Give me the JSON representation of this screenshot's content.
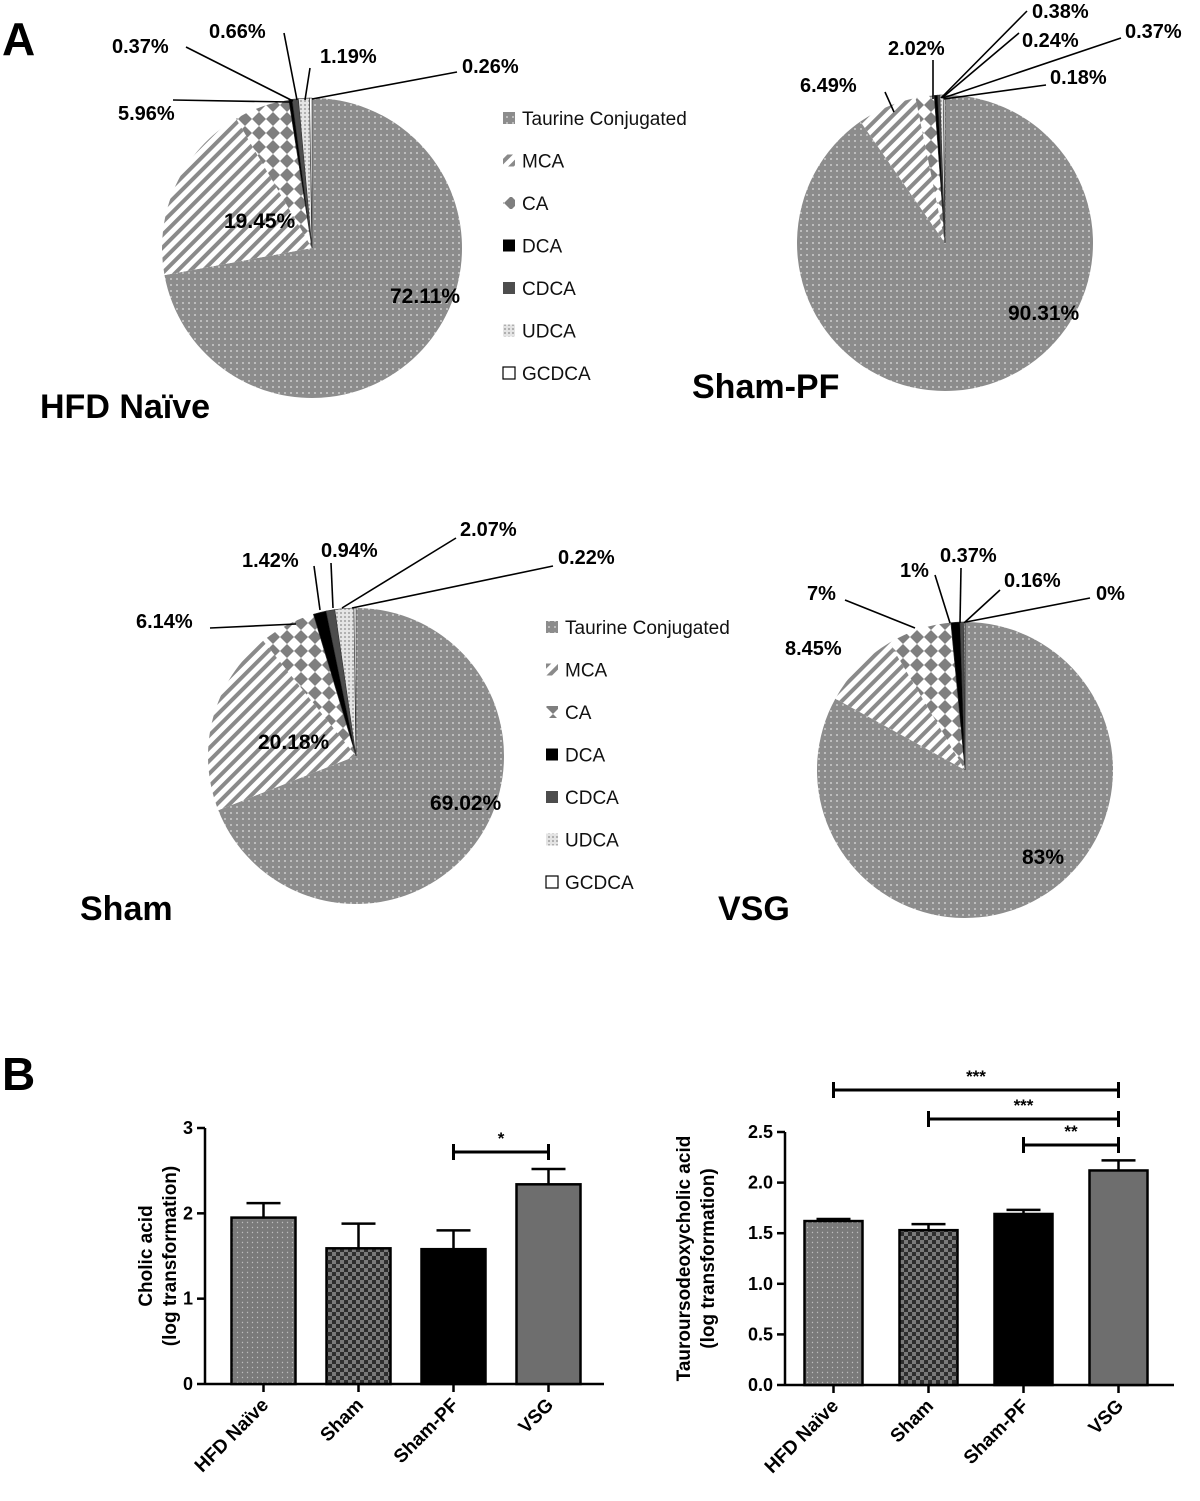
{
  "figure": {
    "panel_a_letter": "A",
    "panel_b_letter": "B"
  },
  "legend_items": [
    "Taurine Conjugated",
    "MCA",
    "CA",
    "DCA",
    "CDCA",
    "UDCA",
    "GCDCA"
  ],
  "colors": {
    "taurine": "#8c8c8c",
    "mca": "#ffffff",
    "ca": "#7f7f7f",
    "dca": "#000000",
    "cdca": "#4d4d4d",
    "udca": "#c8c8c8",
    "gcdca": "#ffffff",
    "bar_hfd": "#7a7a7a",
    "bar_sham": "#3a3a3a",
    "bar_shampf": "#000000",
    "bar_vsg": "#6e6e6e"
  },
  "chart_data": [
    {
      "type": "pie",
      "title": "HFD Naïve",
      "categories": [
        "Taurine Conjugated",
        "MCA",
        "CA",
        "DCA",
        "CDCA",
        "UDCA",
        "GCDCA"
      ],
      "values": [
        72.11,
        19.45,
        5.96,
        0.37,
        0.66,
        1.19,
        0.26
      ],
      "labels": [
        "72.11%",
        "19.45%",
        "5.96%",
        "0.37%",
        "0.66%",
        "1.19%",
        "0.26%"
      ]
    },
    {
      "type": "pie",
      "title": "Sham-PF",
      "categories": [
        "Taurine Conjugated",
        "MCA",
        "CA",
        "DCA",
        "CDCA",
        "UDCA",
        "GCDCA"
      ],
      "values": [
        90.31,
        6.49,
        2.02,
        0.38,
        0.24,
        0.37,
        0.18
      ],
      "labels": [
        "90.31%",
        "6.49%",
        "2.02%",
        "0.38%",
        "0.24%",
        "0.37%",
        "0.18%"
      ]
    },
    {
      "type": "pie",
      "title": "Sham",
      "categories": [
        "Taurine Conjugated",
        "MCA",
        "CA",
        "DCA",
        "CDCA",
        "UDCA",
        "GCDCA"
      ],
      "values": [
        69.02,
        20.18,
        6.14,
        1.42,
        0.94,
        2.07,
        0.22
      ],
      "labels": [
        "69.02%",
        "20.18%",
        "6.14%",
        "1.42%",
        "0.94%",
        "2.07%",
        "0.22%"
      ]
    },
    {
      "type": "pie",
      "title": "VSG",
      "categories": [
        "Taurine Conjugated",
        "MCA",
        "CA",
        "DCA",
        "CDCA",
        "UDCA",
        "GCDCA"
      ],
      "values": [
        83,
        8.45,
        7,
        1,
        0.37,
        0.16,
        0
      ],
      "labels": [
        "83%",
        "8.45%",
        "7%",
        "1%",
        "0.37%",
        "0.16%",
        "0%"
      ]
    },
    {
      "type": "bar",
      "categories": [
        "HFD Naïve",
        "Sham",
        "Sham-PF",
        "VSG"
      ],
      "values": [
        1.95,
        1.59,
        1.58,
        2.34
      ],
      "errors": [
        0.17,
        0.29,
        0.22,
        0.18
      ],
      "ylabel_lines": [
        "Cholic acid",
        "(log transformation)"
      ],
      "ylim": [
        0,
        3
      ],
      "yticks": [
        "0",
        "1",
        "2",
        "3"
      ],
      "significance": [
        {
          "from": 2,
          "to": 3,
          "label": "*"
        }
      ]
    },
    {
      "type": "bar",
      "categories": [
        "HFD Naïve",
        "Sham",
        "Sham-PF",
        "VSG"
      ],
      "values": [
        1.62,
        1.53,
        1.69,
        2.12
      ],
      "errors": [
        0.02,
        0.06,
        0.04,
        0.1
      ],
      "ylabel_lines": [
        "Tauroursodeoxycholic acid",
        "(log transformation)"
      ],
      "ylim": [
        0,
        2.5
      ],
      "yticks": [
        "0.0",
        "0.5",
        "1.0",
        "1.5",
        "2.0",
        "2.5"
      ],
      "significance": [
        {
          "from": 0,
          "to": 3,
          "label": "***"
        },
        {
          "from": 1,
          "to": 3,
          "label": "***"
        },
        {
          "from": 2,
          "to": 3,
          "label": "**"
        }
      ]
    }
  ]
}
